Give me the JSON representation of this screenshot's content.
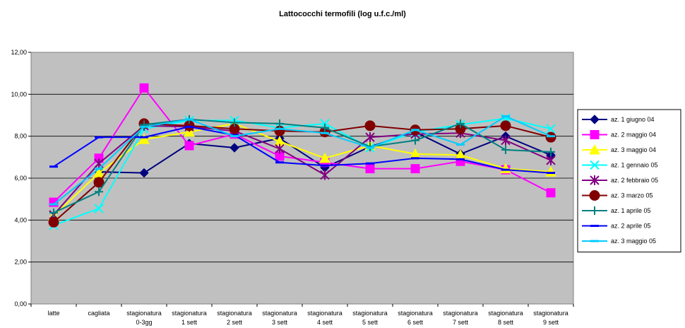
{
  "chart_data": {
    "type": "line",
    "title": "Lattococchi termofili (log u.f.c./ml)",
    "ylim": [
      0,
      12
    ],
    "yticks": [
      "0,00",
      "2,00",
      "4,00",
      "6,00",
      "8,00",
      "10,00",
      "12,00"
    ],
    "ytick_values": [
      0,
      2,
      4,
      6,
      8,
      10,
      12
    ],
    "grid": true,
    "legend": "right",
    "categories": [
      [
        "latte"
      ],
      [
        "cagliata"
      ],
      [
        "stagionatura",
        "0-3gg"
      ],
      [
        "stagionatura",
        "1 sett"
      ],
      [
        "stagionatura",
        "2 sett"
      ],
      [
        "stagionatura",
        "3 sett"
      ],
      [
        "stagionatura",
        "4 sett"
      ],
      [
        "stagionatura",
        "5 sett"
      ],
      [
        "stagionatura",
        "6 sett"
      ],
      [
        "stagionatura",
        "7 sett"
      ],
      [
        "stagionatura",
        "8 sett"
      ],
      [
        "stagionatura",
        "9 sett"
      ]
    ],
    "series": [
      {
        "name": "az. 1 giugno 04",
        "color": "#000080",
        "marker": "diamond",
        "values": [
          null,
          6.3,
          6.25,
          7.65,
          7.45,
          7.9,
          6.5,
          7.5,
          8.2,
          7.15,
          8.0,
          7.1
        ]
      },
      {
        "name": "az. 2 maggio 04",
        "color": "#ff00ff",
        "marker": "square",
        "values": [
          4.85,
          6.95,
          10.3,
          7.55,
          8.1,
          7.05,
          6.75,
          6.45,
          6.45,
          6.8,
          6.4,
          5.3
        ]
      },
      {
        "name": "az. 3 maggio 04",
        "color": "#ffff00",
        "marker": "triangle",
        "values": [
          4.2,
          6.25,
          7.85,
          8.2,
          8.6,
          7.75,
          6.95,
          7.55,
          7.15,
          7.1,
          6.45,
          6.3
        ]
      },
      {
        "name": "az. 1 gennaio 05",
        "color": "#00ffff",
        "marker": "x",
        "values": [
          3.75,
          4.55,
          8.35,
          8.75,
          8.75,
          8.4,
          8.6,
          7.45,
          8.2,
          8.55,
          8.85,
          8.35
        ]
      },
      {
        "name": "az. 2 febbraio 05",
        "color": "#800080",
        "marker": "star",
        "values": [
          4.25,
          6.7,
          8.5,
          8.45,
          8.25,
          7.4,
          6.15,
          7.95,
          8.1,
          8.15,
          7.8,
          6.85
        ]
      },
      {
        "name": "az. 3 marzo 05",
        "color": "#800000",
        "marker": "circle",
        "values": [
          3.9,
          5.8,
          8.6,
          8.5,
          8.35,
          8.25,
          8.2,
          8.5,
          8.3,
          8.35,
          8.5,
          7.95
        ]
      },
      {
        "name": "az. 1 aprile 05",
        "color": "#008080",
        "marker": "plus",
        "values": [
          4.35,
          5.35,
          8.55,
          8.8,
          8.65,
          8.6,
          8.4,
          7.5,
          7.8,
          8.6,
          7.35,
          7.25
        ]
      },
      {
        "name": "az. 2 aprile 05",
        "color": "#0000ff",
        "marker": "dash",
        "values": [
          6.55,
          7.95,
          7.95,
          8.45,
          8.05,
          6.75,
          6.6,
          6.7,
          6.95,
          6.9,
          6.4,
          6.25
        ]
      },
      {
        "name": "az. 3 maggio 05",
        "color": "#00ccff",
        "marker": "dash",
        "values": [
          4.75,
          6.45,
          8.45,
          8.8,
          8.0,
          8.35,
          8.15,
          7.45,
          8.3,
          7.6,
          8.95,
          8.0
        ]
      }
    ]
  }
}
